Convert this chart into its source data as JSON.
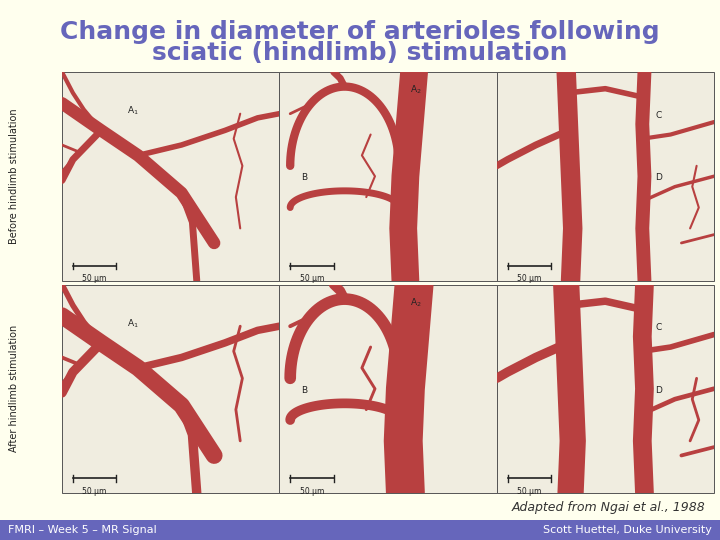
{
  "title_line1": "Change in diameter of arterioles following",
  "title_line2": "sciatic (hindlimb) stimulation",
  "title_color": "#6666bb",
  "background_color": "#ffffee",
  "footer_bg_color": "#6666bb",
  "footer_text_left": "FMRI – Week 5 – MR Signal",
  "footer_text_right": "Scott Huettel, Duke University",
  "footer_text_color": "#ffffff",
  "attribution_text": "Adapted from Ngai et al., 1988",
  "attribution_color": "#333333",
  "ylabel_top": "Before hindlimb stimulation",
  "ylabel_bottom": "After hindlimb stimulation",
  "ylabel_color": "#222222",
  "panel_bg": "#f0ede0",
  "vessel_color": "#b84040",
  "vessel_shadow": "#8b2020",
  "label_color": "#222222",
  "scale_bar_color": "#222222",
  "border_color": "#555555",
  "title_fontsize": 18,
  "footer_fontsize": 8,
  "attribution_fontsize": 9,
  "ylabel_fontsize": 7,
  "label_fontsize": 6.5,
  "scale_fontsize": 5.5
}
